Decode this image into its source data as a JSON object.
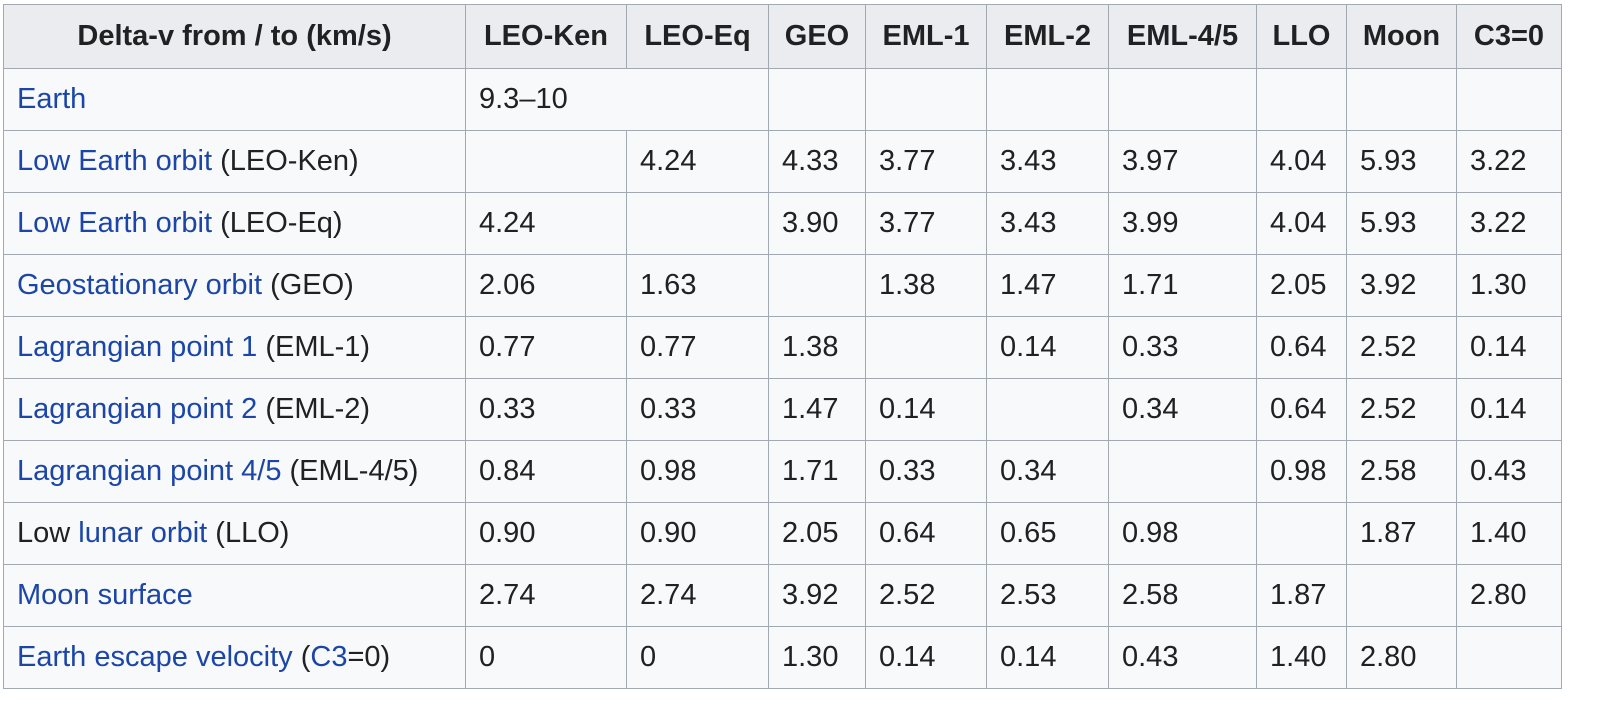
{
  "header": [
    "Delta-v from / to (km/s)",
    "LEO-Ken",
    "LEO-Eq",
    "GEO",
    "EML-1",
    "EML-2",
    "EML-4/5",
    "LLO",
    "Moon",
    "C3=0"
  ],
  "rows": [
    {
      "label_parts": [
        {
          "text": "Earth",
          "link": true
        }
      ],
      "cells": [
        {
          "text": "9.3–10",
          "colspan": 2
        },
        {
          "text": ""
        },
        {
          "text": ""
        },
        {
          "text": ""
        },
        {
          "text": ""
        },
        {
          "text": ""
        },
        {
          "text": ""
        },
        {
          "text": ""
        }
      ]
    },
    {
      "label_parts": [
        {
          "text": "Low Earth orbit",
          "link": true
        },
        {
          "text": " (LEO-Ken)",
          "link": false
        }
      ],
      "cells": [
        {
          "text": ""
        },
        {
          "text": "4.24"
        },
        {
          "text": "4.33"
        },
        {
          "text": "3.77"
        },
        {
          "text": "3.43"
        },
        {
          "text": "3.97"
        },
        {
          "text": "4.04"
        },
        {
          "text": "5.93"
        },
        {
          "text": "3.22"
        }
      ]
    },
    {
      "label_parts": [
        {
          "text": "Low Earth orbit",
          "link": true
        },
        {
          "text": " (LEO-Eq)",
          "link": false
        }
      ],
      "cells": [
        {
          "text": "4.24"
        },
        {
          "text": ""
        },
        {
          "text": "3.90"
        },
        {
          "text": "3.77"
        },
        {
          "text": "3.43"
        },
        {
          "text": "3.99"
        },
        {
          "text": "4.04"
        },
        {
          "text": "5.93"
        },
        {
          "text": "3.22"
        }
      ]
    },
    {
      "label_parts": [
        {
          "text": "Geostationary orbit",
          "link": true
        },
        {
          "text": " (GEO)",
          "link": false
        }
      ],
      "cells": [
        {
          "text": "2.06"
        },
        {
          "text": "1.63"
        },
        {
          "text": ""
        },
        {
          "text": "1.38"
        },
        {
          "text": "1.47"
        },
        {
          "text": "1.71"
        },
        {
          "text": "2.05"
        },
        {
          "text": "3.92"
        },
        {
          "text": "1.30"
        }
      ]
    },
    {
      "label_parts": [
        {
          "text": "Lagrangian point 1",
          "link": true
        },
        {
          "text": " (EML-1)",
          "link": false
        }
      ],
      "cells": [
        {
          "text": "0.77"
        },
        {
          "text": "0.77"
        },
        {
          "text": "1.38"
        },
        {
          "text": ""
        },
        {
          "text": "0.14"
        },
        {
          "text": "0.33"
        },
        {
          "text": "0.64"
        },
        {
          "text": "2.52"
        },
        {
          "text": "0.14"
        }
      ]
    },
    {
      "label_parts": [
        {
          "text": "Lagrangian point 2",
          "link": true
        },
        {
          "text": " (EML-2)",
          "link": false
        }
      ],
      "cells": [
        {
          "text": "0.33"
        },
        {
          "text": "0.33"
        },
        {
          "text": "1.47"
        },
        {
          "text": "0.14"
        },
        {
          "text": ""
        },
        {
          "text": "0.34"
        },
        {
          "text": "0.64"
        },
        {
          "text": "2.52"
        },
        {
          "text": "0.14"
        }
      ]
    },
    {
      "label_parts": [
        {
          "text": "Lagrangian point 4/5",
          "link": true
        },
        {
          "text": " (EML-4/5)",
          "link": false
        }
      ],
      "cells": [
        {
          "text": "0.84"
        },
        {
          "text": "0.98"
        },
        {
          "text": "1.71"
        },
        {
          "text": "0.33"
        },
        {
          "text": "0.34"
        },
        {
          "text": ""
        },
        {
          "text": "0.98"
        },
        {
          "text": "2.58"
        },
        {
          "text": "0.43"
        }
      ]
    },
    {
      "label_parts": [
        {
          "text": "Low ",
          "link": false
        },
        {
          "text": "lunar orbit",
          "link": true
        },
        {
          "text": " (LLO)",
          "link": false
        }
      ],
      "cells": [
        {
          "text": "0.90"
        },
        {
          "text": "0.90"
        },
        {
          "text": "2.05"
        },
        {
          "text": "0.64"
        },
        {
          "text": "0.65"
        },
        {
          "text": "0.98"
        },
        {
          "text": ""
        },
        {
          "text": "1.87"
        },
        {
          "text": "1.40"
        }
      ]
    },
    {
      "label_parts": [
        {
          "text": "Moon surface",
          "link": true
        }
      ],
      "cells": [
        {
          "text": "2.74"
        },
        {
          "text": "2.74"
        },
        {
          "text": "3.92"
        },
        {
          "text": "2.52"
        },
        {
          "text": "2.53"
        },
        {
          "text": "2.58"
        },
        {
          "text": "1.87"
        },
        {
          "text": ""
        },
        {
          "text": "2.80"
        }
      ]
    },
    {
      "label_parts": [
        {
          "text": "Earth escape velocity",
          "link": true
        },
        {
          "text": " (",
          "link": false
        },
        {
          "text": "C3",
          "link": true
        },
        {
          "text": "=0)",
          "link": false
        }
      ],
      "cells": [
        {
          "text": "0"
        },
        {
          "text": "0"
        },
        {
          "text": "1.30"
        },
        {
          "text": "0.14"
        },
        {
          "text": "0.14"
        },
        {
          "text": "0.43"
        },
        {
          "text": "1.40"
        },
        {
          "text": "2.80"
        },
        {
          "text": ""
        }
      ]
    }
  ],
  "colors": {
    "link": "#1b46a8",
    "text": "#202122",
    "header_bg": "#eaecf0",
    "cell_bg": "#f8f9fa",
    "border": "#a2a9b1"
  }
}
